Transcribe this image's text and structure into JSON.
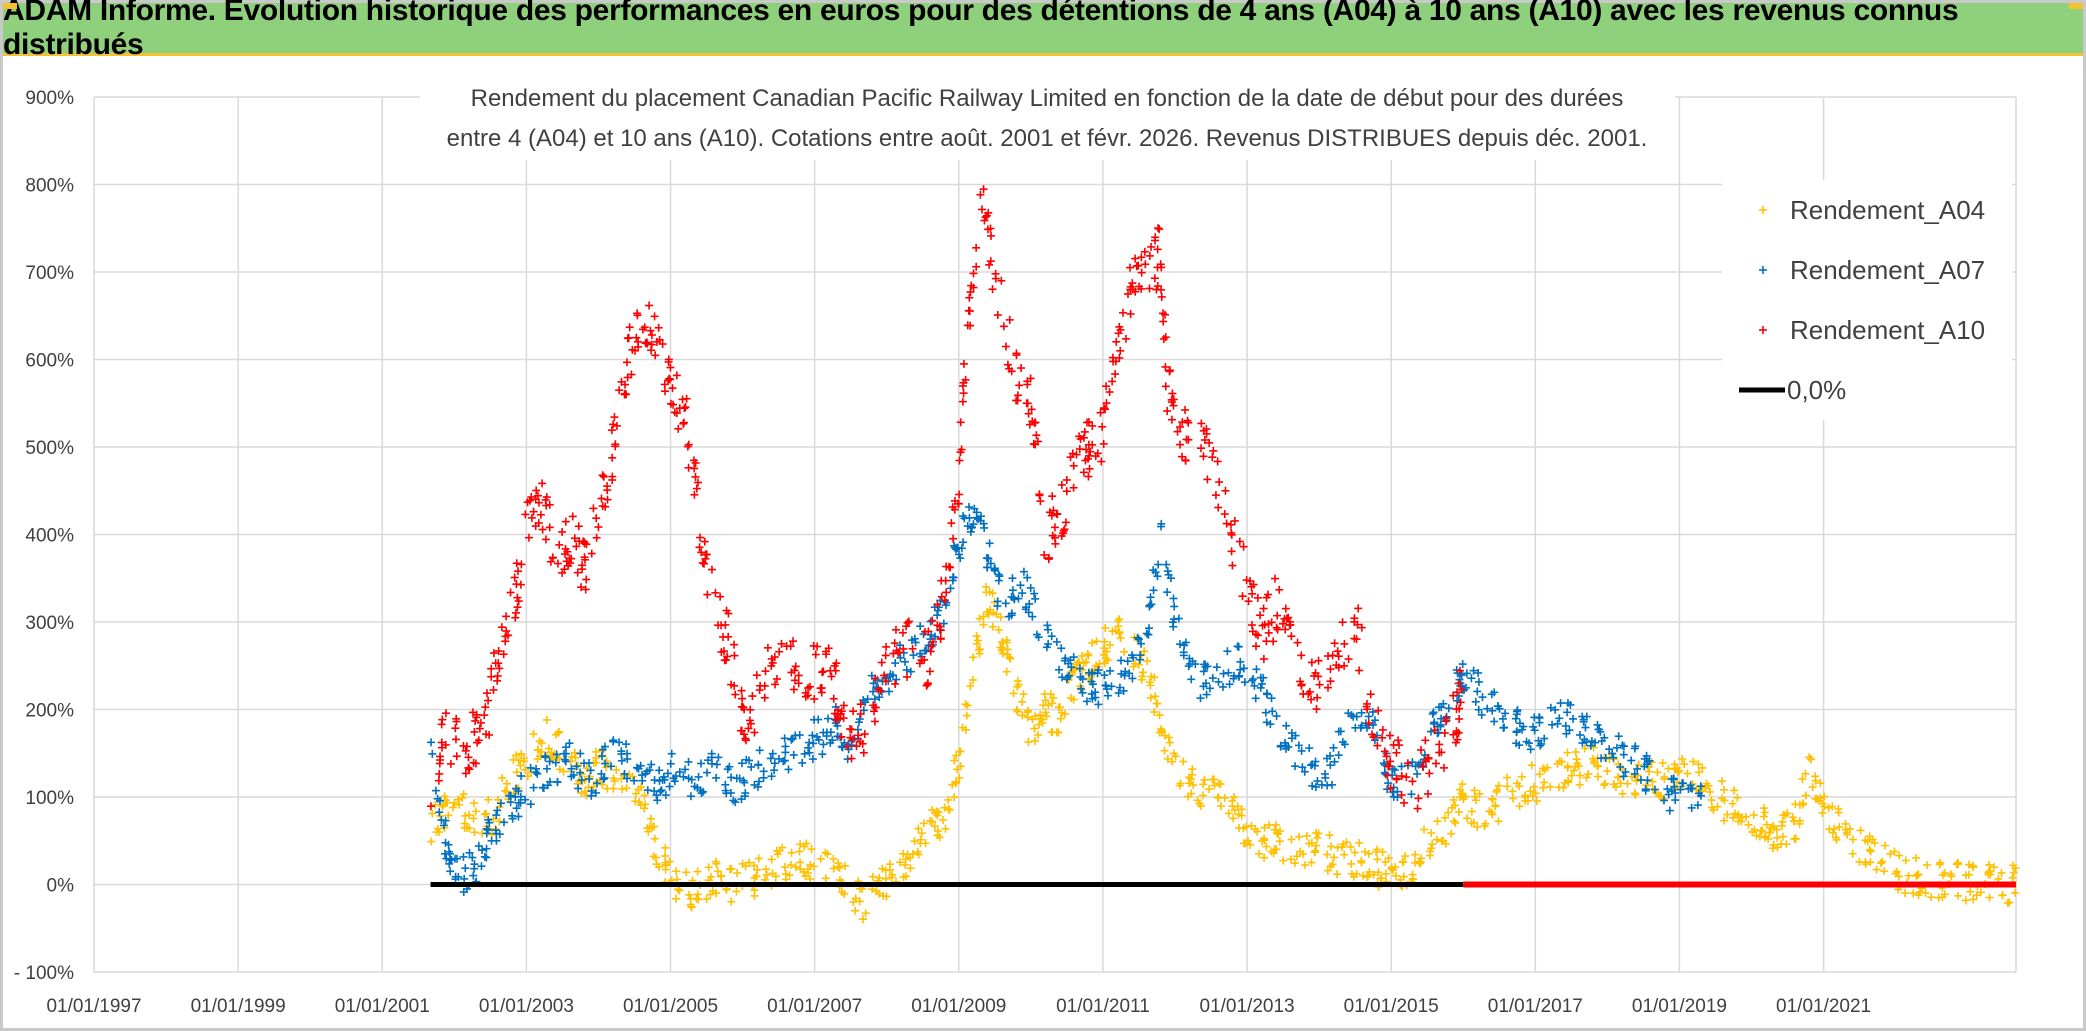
{
  "banner": {
    "title": "ADAM Informe. Evolution historique des performances en euros pour des détentions de 4 ans (A04) à 10 ans (A10) avec les revenus connus distribués"
  },
  "colors": {
    "a04": "#ffc000",
    "a07": "#0070c0",
    "a10": "#ff0000",
    "zero": "#000000",
    "grid": "#d9d9d9",
    "banner": "#8fd07c"
  },
  "chart_data": {
    "type": "scatter",
    "title_line1": "Rendement du placement Canadian Pacific Railway Limited en fonction de la date de début pour des durées",
    "title_line2": "entre 4 (A04) et 10 ans (A10). Cotations entre août. 2001 et févr. 2026. Revenus DISTRIBUES depuis déc. 2001.",
    "xlabel": "",
    "ylabel": "",
    "x_range": [
      1997.0,
      2023.67
    ],
    "ylim": [
      -100,
      900
    ],
    "y_ticks": [
      -100,
      0,
      100,
      200,
      300,
      400,
      500,
      600,
      700,
      800,
      900
    ],
    "y_tick_labels": [
      "- 100%",
      "0%",
      "100%",
      "200%",
      "300%",
      "400%",
      "500%",
      "600%",
      "700%",
      "800%",
      "900%"
    ],
    "x_ticks": [
      1997,
      1999,
      2001,
      2003,
      2005,
      2007,
      2009,
      2011,
      2013,
      2015,
      2017,
      2019,
      2021
    ],
    "x_tick_labels": [
      "01/01/1997",
      "01/01/1999",
      "01/01/2001",
      "01/01/2003",
      "01/01/2005",
      "01/01/2007",
      "01/01/2009",
      "01/01/2011",
      "01/01/2013",
      "01/01/2015",
      "01/01/2017",
      "01/01/2019",
      "01/01/2021"
    ],
    "legend": [
      "Rendement_A04",
      "Rendement_A07",
      "Rendement_A10",
      "0,0%"
    ],
    "legend_position": "top-right",
    "series": [
      {
        "name": "Rendement_A04",
        "x": [
          2001.67,
          2001.9,
          2002.2,
          2002.5,
          2002.8,
          2003.0,
          2003.3,
          2003.5,
          2003.8,
          2004.0,
          2004.3,
          2004.6,
          2004.8,
          2005.0,
          2005.3,
          2005.6,
          2005.9,
          2006.2,
          2006.5,
          2006.8,
          2007.1,
          2007.4,
          2007.7,
          2008.0,
          2008.3,
          2008.6,
          2008.8,
          2009.0,
          2009.2,
          2009.4,
          2009.6,
          2009.8,
          2010.0,
          2010.2,
          2010.4,
          2010.6,
          2010.8,
          2011.0,
          2011.2,
          2011.5,
          2011.7,
          2011.9,
          2012.2,
          2012.5,
          2012.8,
          2013.0,
          2013.3,
          2013.6,
          2013.9,
          2014.2,
          2014.5,
          2014.8,
          2015.0,
          2015.2,
          2015.5,
          2015.8,
          2016.0,
          2016.3,
          2016.6,
          2016.9,
          2017.2,
          2017.5,
          2017.8,
          2018.0,
          2018.3,
          2018.6,
          2018.9,
          2019.1,
          2019.4,
          2019.7,
          2020.0,
          2020.2,
          2020.4,
          2020.6,
          2020.8,
          2021.0,
          2021.3,
          2021.6,
          2021.9,
          2022.2,
          2022.5,
          2022.8,
          2023.1,
          2023.4,
          2023.67
        ],
        "y": [
          60,
          90,
          80,
          75,
          120,
          140,
          170,
          150,
          120,
          140,
          120,
          110,
          40,
          10,
          -10,
          5,
          0,
          10,
          20,
          30,
          20,
          5,
          -20,
          5,
          30,
          60,
          80,
          140,
          250,
          330,
          280,
          220,
          170,
          200,
          190,
          230,
          250,
          270,
          290,
          260,
          220,
          160,
          110,
          110,
          90,
          60,
          50,
          45,
          40,
          35,
          30,
          20,
          15,
          10,
          50,
          70,
          100,
          80,
          100,
          115,
          120,
          130,
          135,
          130,
          120,
          125,
          115,
          130,
          110,
          90,
          75,
          65,
          55,
          70,
          130,
          90,
          60,
          40,
          20,
          10,
          5,
          5,
          0,
          2,
          0
        ]
      },
      {
        "name": "Rendement_A07",
        "x": [
          2001.67,
          2001.9,
          2002.1,
          2002.3,
          2002.5,
          2002.8,
          2003.0,
          2003.3,
          2003.6,
          2003.9,
          2004.2,
          2004.5,
          2004.8,
          2005.0,
          2005.3,
          2005.6,
          2005.9,
          2006.2,
          2006.5,
          2006.8,
          2007.1,
          2007.3,
          2007.5,
          2007.8,
          2008.0,
          2008.3,
          2008.6,
          2008.8,
          2009.0,
          2009.2,
          2009.4,
          2009.6,
          2009.9,
          2010.2,
          2010.5,
          2010.8,
          2011.0,
          2011.3,
          2011.6,
          2011.8,
          2012.0,
          2012.3,
          2012.6,
          2012.9,
          2013.2,
          2013.5,
          2013.8,
          2014.1,
          2014.4,
          2014.7,
          2015.0,
          2015.3,
          2015.6,
          2015.9,
          2016.0,
          2016.3,
          2016.6,
          2016.9,
          2017.2,
          2017.5,
          2017.8,
          2018.1,
          2018.4,
          2018.7,
          2019.0,
          2019.3
        ],
        "y": [
          170,
          40,
          10,
          20,
          60,
          90,
          110,
          130,
          140,
          120,
          150,
          140,
          110,
          130,
          120,
          130,
          110,
          130,
          140,
          160,
          170,
          190,
          150,
          220,
          240,
          260,
          290,
          320,
          390,
          430,
          380,
          320,
          340,
          280,
          250,
          230,
          220,
          240,
          280,
          400,
          300,
          230,
          240,
          260,
          220,
          170,
          140,
          120,
          180,
          200,
          110,
          120,
          180,
          230,
          240,
          210,
          190,
          170,
          180,
          190,
          170,
          150,
          140,
          110,
          95,
          105
        ]
      },
      {
        "name": "Rendement_A10",
        "x": [
          2001.67,
          2001.9,
          2002.2,
          2002.4,
          2002.6,
          2002.8,
          2003.0,
          2003.2,
          2003.4,
          2003.6,
          2003.8,
          2004.0,
          2004.2,
          2004.4,
          2004.6,
          2004.8,
          2005.0,
          2005.2,
          2005.4,
          2005.6,
          2005.8,
          2006.0,
          2006.2,
          2006.5,
          2006.8,
          2007.1,
          2007.3,
          2007.5,
          2007.8,
          2008.0,
          2008.3,
          2008.6,
          2008.8,
          2009.0,
          2009.1,
          2009.3,
          2009.5,
          2009.8,
          2010.0,
          2010.2,
          2010.4,
          2010.6,
          2010.8,
          2011.0,
          2011.2,
          2011.4,
          2011.6,
          2011.8,
          2011.9,
          2012.1,
          2012.4,
          2012.7,
          2013.0,
          2013.2,
          2013.4,
          2013.6,
          2013.9,
          2014.2,
          2014.5,
          2014.8,
          2015.0,
          2015.3,
          2015.6,
          2015.9,
          2016.0
        ],
        "y": [
          120,
          170,
          160,
          170,
          250,
          310,
          400,
          430,
          380,
          400,
          360,
          430,
          490,
          600,
          660,
          620,
          560,
          540,
          420,
          320,
          280,
          180,
          210,
          270,
          240,
          250,
          220,
          160,
          200,
          250,
          270,
          260,
          330,
          450,
          620,
          780,
          700,
          580,
          550,
          400,
          420,
          480,
          500,
          520,
          620,
          680,
          700,
          720,
          560,
          520,
          500,
          420,
          340,
          280,
          320,
          300,
          220,
          270,
          300,
          170,
          140,
          110,
          150,
          190,
          240
        ]
      },
      {
        "name": "0,0%",
        "x": [
          2001.67,
          2016.0
        ],
        "y": [
          0,
          0
        ]
      },
      {
        "name": "Rendement_A10_zero",
        "x": [
          2016.0,
          2023.67
        ],
        "y": [
          0,
          0
        ]
      }
    ]
  }
}
